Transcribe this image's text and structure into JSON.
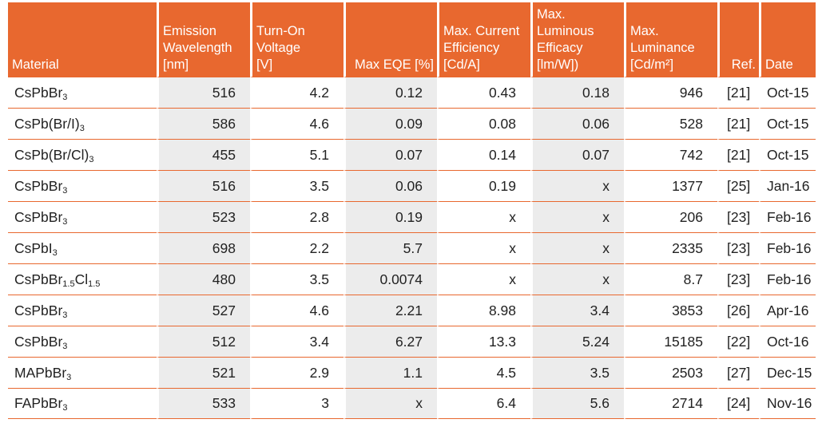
{
  "headers": [
    [
      "Material"
    ],
    [
      "Emission",
      "Wavelength",
      "[nm]"
    ],
    [
      "Turn-On",
      "Voltage",
      "[V]"
    ],
    [
      "Max EQE [%]"
    ],
    [
      "Max. Current",
      "Efficiency",
      "[Cd/A]"
    ],
    [
      "Max.",
      "Luminous",
      "Efficacy",
      "[lm/W])"
    ],
    [
      "Max.",
      "Luminance",
      "[Cd/m²]"
    ],
    [
      "Ref."
    ],
    [
      "Date"
    ]
  ],
  "rows": [
    {
      "material": [
        [
          "CsPbBr",
          ""
        ],
        [
          "3",
          "sub"
        ]
      ],
      "wavelength": "516",
      "voltage": "4.2",
      "eqe": "0.12",
      "current": "0.43",
      "efficacy": "0.18",
      "luminance": "946",
      "ref": "[21]",
      "date": "Oct-15"
    },
    {
      "material": [
        [
          "CsPb(Br/I)",
          ""
        ],
        [
          "3",
          "sub"
        ]
      ],
      "wavelength": "586",
      "voltage": "4.6",
      "eqe": "0.09",
      "current": "0.08",
      "efficacy": "0.06",
      "luminance": "528",
      "ref": "[21]",
      "date": "Oct-15"
    },
    {
      "material": [
        [
          "CsPb(Br/Cl)",
          ""
        ],
        [
          "3",
          "sub"
        ]
      ],
      "wavelength": "455",
      "voltage": "5.1",
      "eqe": "0.07",
      "current": "0.14",
      "efficacy": "0.07",
      "luminance": "742",
      "ref": "[21]",
      "date": "Oct-15"
    },
    {
      "material": [
        [
          "CsPbBr",
          ""
        ],
        [
          "3",
          "sub"
        ]
      ],
      "wavelength": "516",
      "voltage": "3.5",
      "eqe": "0.06",
      "current": "0.19",
      "efficacy": "x",
      "luminance": "1377",
      "ref": "[25]",
      "date": "Jan-16"
    },
    {
      "material": [
        [
          "CsPbBr",
          ""
        ],
        [
          "3",
          "sub"
        ]
      ],
      "wavelength": "523",
      "voltage": "2.8",
      "eqe": "0.19",
      "current": "x",
      "efficacy": "x",
      "luminance": "206",
      "ref": "[23]",
      "date": "Feb-16"
    },
    {
      "material": [
        [
          "CsPbI",
          ""
        ],
        [
          "3",
          "sub"
        ]
      ],
      "wavelength": "698",
      "voltage": "2.2",
      "eqe": "5.7",
      "current": "x",
      "efficacy": "x",
      "luminance": "2335",
      "ref": "[23]",
      "date": "Feb-16"
    },
    {
      "material": [
        [
          "CsPbBr",
          ""
        ],
        [
          "1.5",
          "sub"
        ],
        [
          "Cl",
          ""
        ],
        [
          "1.5",
          "sub"
        ]
      ],
      "wavelength": "480",
      "voltage": "3.5",
      "eqe": "0.0074",
      "current": "x",
      "efficacy": "x",
      "luminance": "8.7",
      "ref": "[23]",
      "date": "Feb-16"
    },
    {
      "material": [
        [
          "CsPbBr",
          ""
        ],
        [
          "3",
          "sub"
        ]
      ],
      "wavelength": "527",
      "voltage": "4.6",
      "eqe": "2.21",
      "current": "8.98",
      "efficacy": "3.4",
      "luminance": "3853",
      "ref": "[26]",
      "date": "Apr-16"
    },
    {
      "material": [
        [
          "CsPbBr",
          ""
        ],
        [
          "3",
          "sub"
        ]
      ],
      "wavelength": "512",
      "voltage": "3.4",
      "eqe": "6.27",
      "current": "13.3",
      "efficacy": "5.24",
      "luminance": "15185",
      "ref": "[22]",
      "date": "Oct-16"
    },
    {
      "material": [
        [
          "MAPbBr",
          ""
        ],
        [
          "3",
          "sub"
        ]
      ],
      "wavelength": "521",
      "voltage": "2.9",
      "eqe": "1.1",
      "current": "4.5",
      "efficacy": "3.5",
      "luminance": "2503",
      "ref": "[27]",
      "date": "Dec-15"
    },
    {
      "material": [
        [
          "FAPbBr",
          ""
        ],
        [
          "3",
          "sub"
        ]
      ],
      "wavelength": "533",
      "voltage": "3",
      "eqe": "x",
      "current": "6.4",
      "efficacy": "5.6",
      "luminance": "2714",
      "ref": "[24]",
      "date": "Nov-16"
    }
  ]
}
